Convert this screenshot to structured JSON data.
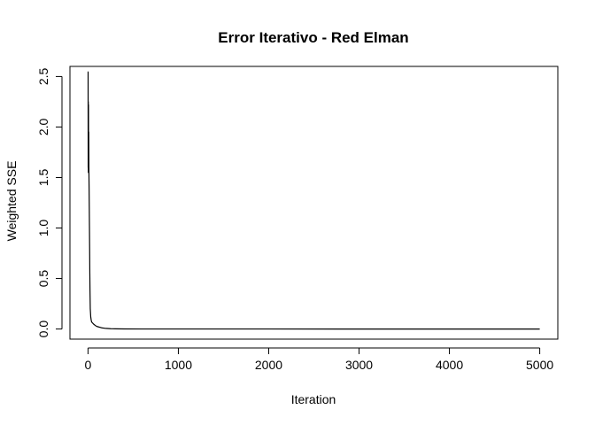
{
  "chart_data": {
    "type": "line",
    "title": "Error Iterativo - Red Elman",
    "xlabel": "Iteration",
    "ylabel": "Weighted SSE",
    "xlim": [
      -200,
      5200
    ],
    "ylim": [
      -0.1,
      2.6
    ],
    "xticks": [
      0,
      1000,
      2000,
      3000,
      4000,
      5000
    ],
    "yticks": [
      0.0,
      0.5,
      1.0,
      1.5,
      2.0,
      2.5
    ],
    "xtick_labels": [
      "0",
      "1000",
      "2000",
      "3000",
      "4000",
      "5000"
    ],
    "ytick_labels": [
      "0.0",
      "0.5",
      "1.0",
      "1.5",
      "2.0",
      "2.5"
    ],
    "grid": false,
    "legend": "none",
    "color": "#000000",
    "series": [
      {
        "x": [
          1,
          2,
          3,
          4,
          5,
          6,
          8,
          10,
          12,
          14,
          16,
          18,
          20,
          22,
          25,
          30,
          35,
          40,
          50,
          60,
          80,
          100,
          150,
          200,
          250,
          300,
          400,
          600,
          1000,
          2000,
          3000,
          4000,
          5000
        ],
        "y": [
          2.55,
          1.6,
          2.25,
          1.55,
          2.22,
          1.7,
          1.95,
          1.55,
          1.4,
          1.2,
          1.0,
          0.8,
          0.55,
          0.38,
          0.2,
          0.12,
          0.09,
          0.07,
          0.06,
          0.05,
          0.035,
          0.025,
          0.012,
          0.006,
          0.003,
          0.002,
          0.001,
          0.0005,
          0.0002,
          0.0001,
          0.0,
          0.0,
          0.0
        ]
      }
    ]
  }
}
